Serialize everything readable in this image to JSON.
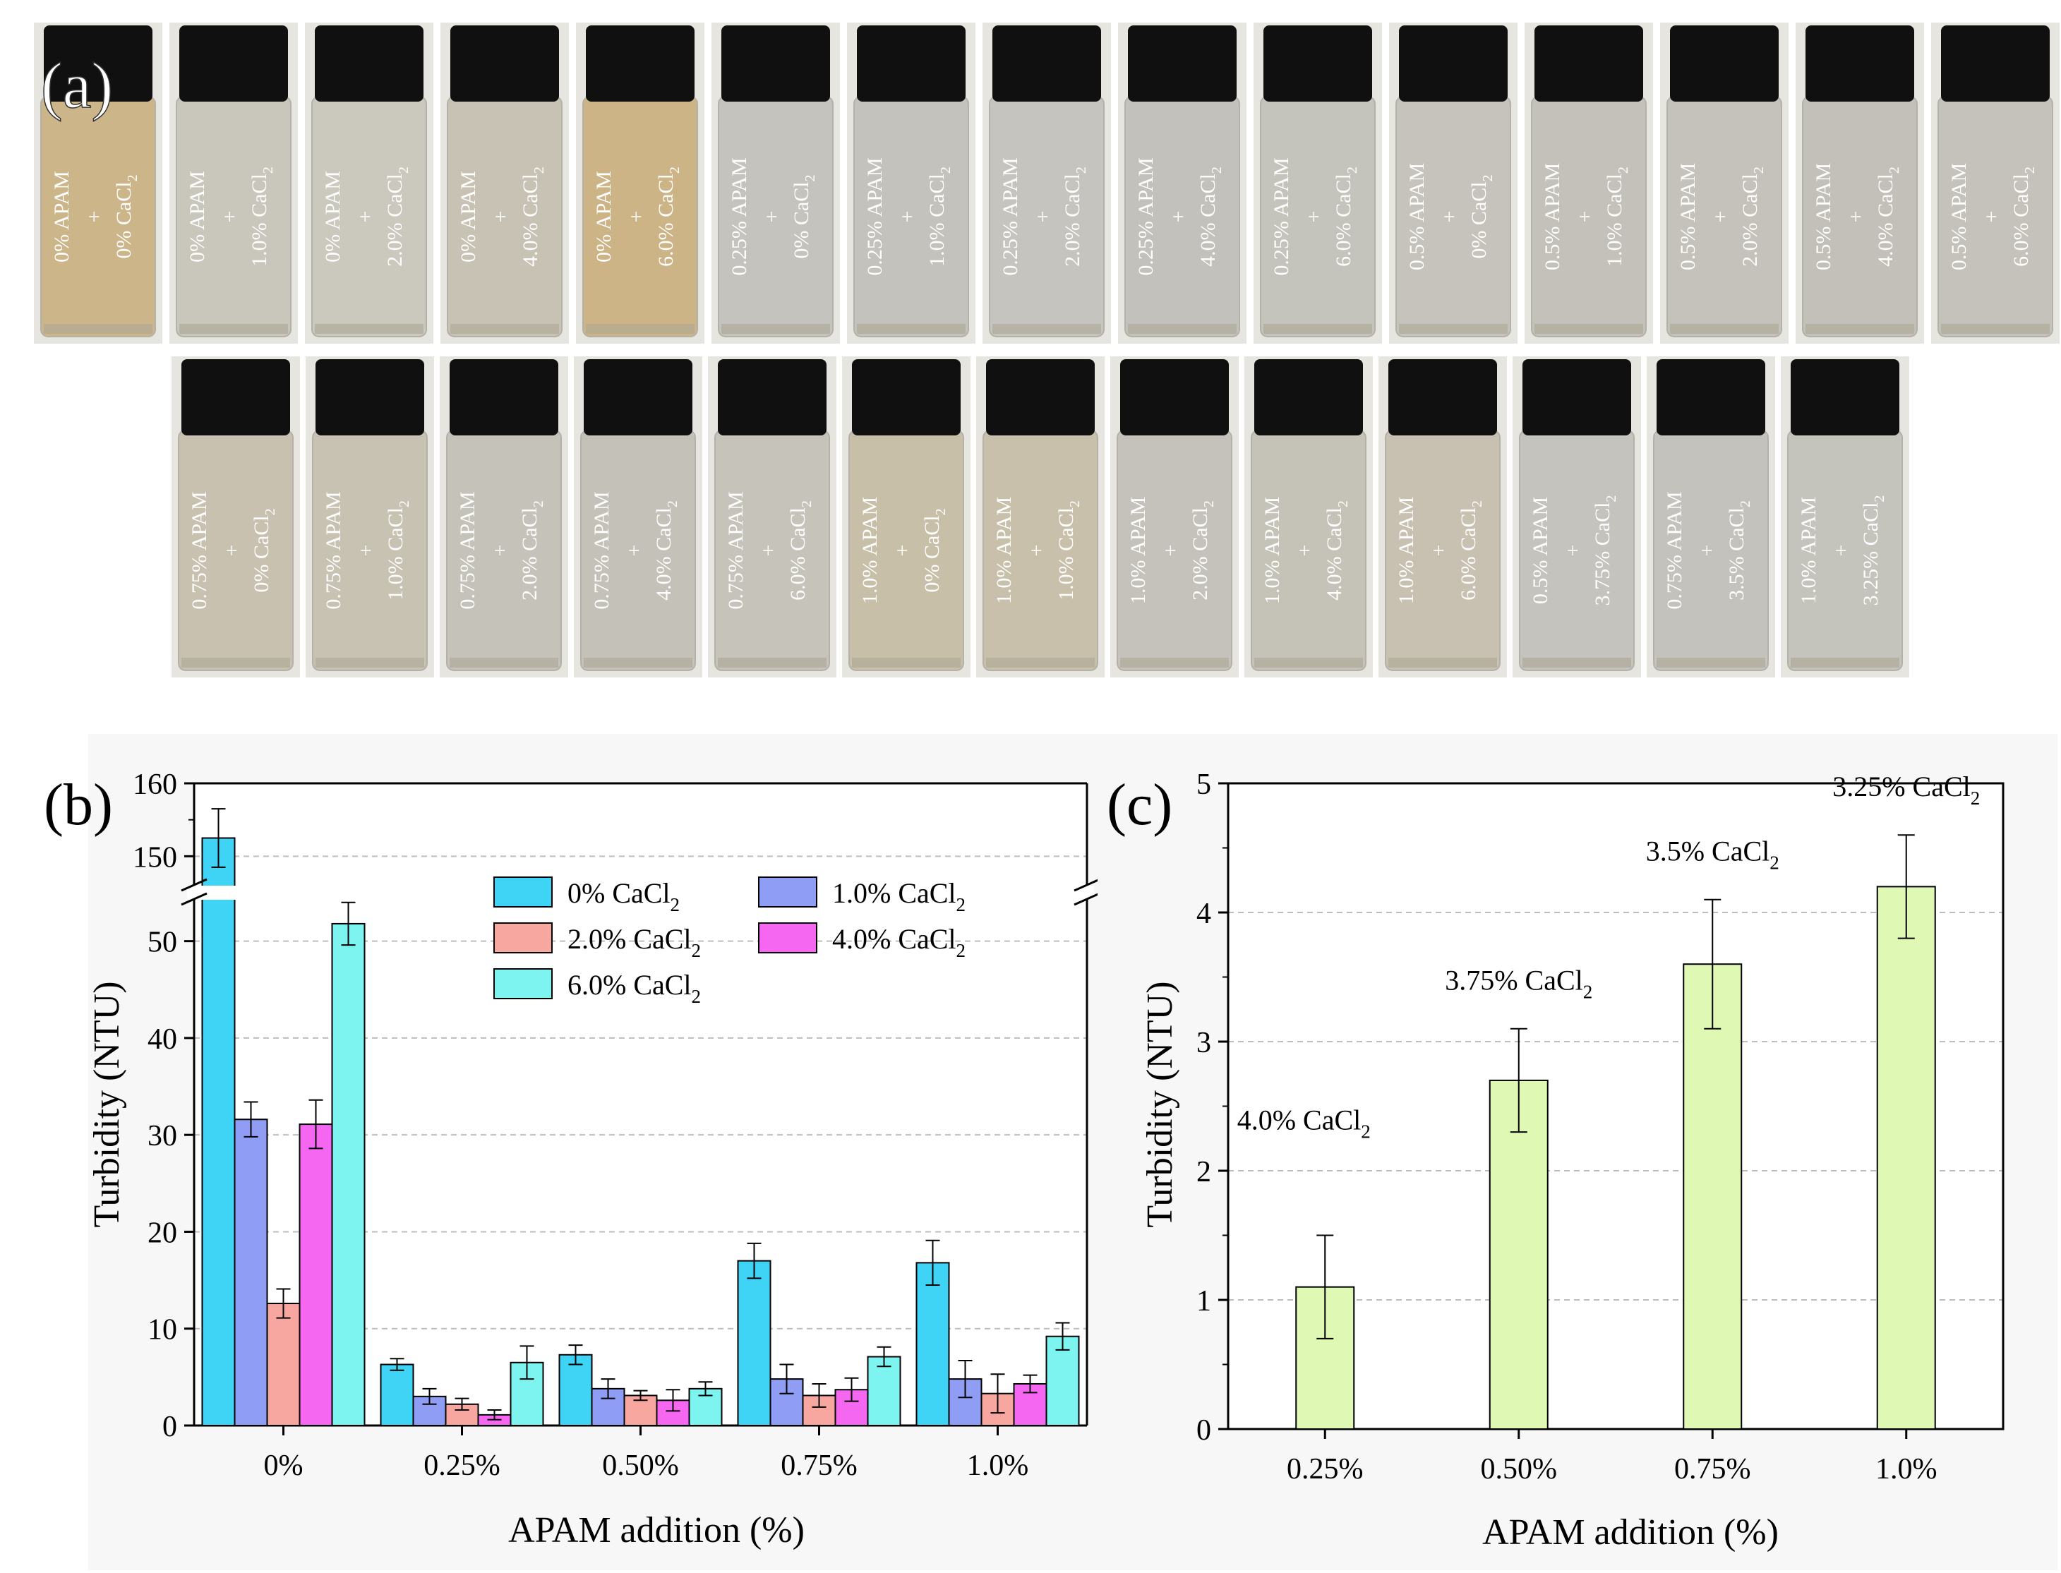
{
  "panel_a": {
    "label": "(a)",
    "row1": [
      {
        "apam": "0% APAM",
        "cacl2": "0% CaCl2",
        "tint": "#cdb58a"
      },
      {
        "apam": "0% APAM",
        "cacl2": "1.0% CaCl2",
        "tint": "#c9c6bb"
      },
      {
        "apam": "0% APAM",
        "cacl2": "2.0% CaCl2",
        "tint": "#cbc8bd"
      },
      {
        "apam": "0% APAM",
        "cacl2": "4.0% CaCl2",
        "tint": "#c7c2b4"
      },
      {
        "apam": "0% APAM",
        "cacl2": "6.0% CaCl2",
        "tint": "#cdb487"
      },
      {
        "apam": "0.25% APAM",
        "cacl2": "0% CaCl2",
        "tint": "#c4c3bd"
      },
      {
        "apam": "0.25% APAM",
        "cacl2": "1.0% CaCl2",
        "tint": "#c3c2bc"
      },
      {
        "apam": "0.25% APAM",
        "cacl2": "2.0% CaCl2",
        "tint": "#c5c4be"
      },
      {
        "apam": "0.25% APAM",
        "cacl2": "4.0% CaCl2",
        "tint": "#c2c1bb"
      },
      {
        "apam": "0.25% APAM",
        "cacl2": "6.0% CaCl2",
        "tint": "#c4c3bc"
      },
      {
        "apam": "0.5% APAM",
        "cacl2": "0% CaCl2",
        "tint": "#c5c3bb"
      },
      {
        "apam": "0.5% APAM",
        "cacl2": "1.0% CaCl2",
        "tint": "#c3c1b9"
      },
      {
        "apam": "0.5% APAM",
        "cacl2": "2.0% CaCl2",
        "tint": "#c4c2ba"
      },
      {
        "apam": "0.5% APAM",
        "cacl2": "4.0% CaCl2",
        "tint": "#c2c0b8"
      },
      {
        "apam": "0.5% APAM",
        "cacl2": "6.0% CaCl2",
        "tint": "#c4c2ba"
      }
    ],
    "row2": [
      {
        "apam": "0.75% APAM",
        "cacl2": "0% CaCl2",
        "tint": "#c9c1b0"
      },
      {
        "apam": "0.75% APAM",
        "cacl2": "1.0% CaCl2",
        "tint": "#c8c2b3"
      },
      {
        "apam": "0.75% APAM",
        "cacl2": "2.0% CaCl2",
        "tint": "#c5c2b9"
      },
      {
        "apam": "0.75% APAM",
        "cacl2": "4.0% CaCl2",
        "tint": "#c4c1b8"
      },
      {
        "apam": "0.75% APAM",
        "cacl2": "6.0% CaCl2",
        "tint": "#c6c3ba"
      },
      {
        "apam": "1.0% APAM",
        "cacl2": "0% CaCl2",
        "tint": "#c8bfa9"
      },
      {
        "apam": "1.0% APAM",
        "cacl2": "1.0% CaCl2",
        "tint": "#c9c0ab"
      },
      {
        "apam": "1.0% APAM",
        "cacl2": "2.0% CaCl2",
        "tint": "#c4c2bb"
      },
      {
        "apam": "1.0% APAM",
        "cacl2": "4.0% CaCl2",
        "tint": "#c5c2b8"
      },
      {
        "apam": "1.0% APAM",
        "cacl2": "6.0% CaCl2",
        "tint": "#c8c1b1"
      },
      {
        "apam": "0.5% APAM",
        "cacl2": "3.75% CaCl2",
        "tint": "#c4c3bd"
      },
      {
        "apam": "0.75% APAM",
        "cacl2": "3.5% CaCl2",
        "tint": "#c3c2bc"
      },
      {
        "apam": "1.0% APAM",
        "cacl2": "3.25% CaCl2",
        "tint": "#c4c3bc"
      }
    ]
  },
  "chart_data": [
    {
      "panel": "(b)",
      "type": "bar",
      "xlabel": "APAM addition (%)",
      "ylabel": "Turbidity (NTU)",
      "categories": [
        "0%",
        "0.25%",
        "0.50%",
        "0.75%",
        "1.0%"
      ],
      "broken_axis": {
        "lower_range": [
          0,
          55
        ],
        "upper_range": [
          145,
          160
        ]
      },
      "yticks_lower": [
        0,
        10,
        20,
        30,
        40,
        50
      ],
      "yticks_upper": [
        150,
        160
      ],
      "grid": "horizontal dashed",
      "legend_position": "top-center",
      "series": [
        {
          "name": "0% CaCl2",
          "color": "#3fd3f5",
          "values": [
            152.5,
            6.3,
            7.3,
            17.0,
            16.8
          ],
          "errors": [
            4.0,
            0.6,
            1.0,
            1.8,
            2.3
          ]
        },
        {
          "name": "1.0% CaCl2",
          "color": "#8f9df5",
          "values": [
            31.6,
            3.0,
            3.8,
            4.8,
            4.8
          ],
          "errors": [
            1.8,
            0.8,
            1.0,
            1.5,
            1.9
          ]
        },
        {
          "name": "2.0% CaCl2",
          "color": "#f7a6a0",
          "values": [
            12.6,
            2.2,
            3.1,
            3.1,
            3.3
          ],
          "errors": [
            1.5,
            0.6,
            0.5,
            1.2,
            2.0
          ]
        },
        {
          "name": "4.0% CaCl2",
          "color": "#f567f0",
          "values": [
            31.1,
            1.1,
            2.6,
            3.7,
            4.3
          ],
          "errors": [
            2.5,
            0.5,
            1.1,
            1.2,
            0.9
          ]
        },
        {
          "name": "6.0% CaCl2",
          "color": "#7ef4f0",
          "values": [
            51.8,
            6.5,
            3.8,
            7.1,
            9.2
          ],
          "errors": [
            2.2,
            1.7,
            0.7,
            1.0,
            1.4
          ]
        }
      ]
    },
    {
      "panel": "(c)",
      "type": "bar",
      "xlabel": "APAM addition (%)",
      "ylabel": "Turbidity (NTU)",
      "categories": [
        "0.25%",
        "0.50%",
        "0.75%",
        "1.0%"
      ],
      "ylim": [
        0,
        5
      ],
      "yticks": [
        0,
        1,
        2,
        3,
        4,
        5
      ],
      "grid": "horizontal dashed",
      "color": "#dff8b4",
      "values": [
        1.1,
        2.7,
        3.6,
        4.2
      ],
      "errors": [
        0.4,
        0.4,
        0.5,
        0.4
      ],
      "annotations": [
        "4.0% CaCl2",
        "3.75% CaCl2",
        "3.5% CaCl2",
        "3.25% CaCl2"
      ]
    }
  ]
}
